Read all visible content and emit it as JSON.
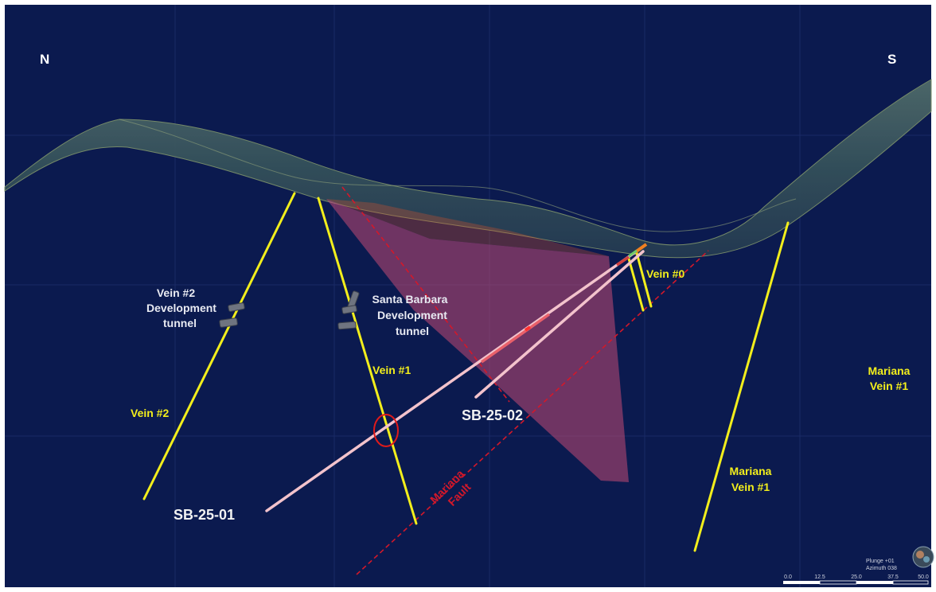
{
  "compass": {
    "north": "N",
    "south": "S"
  },
  "labels": {
    "vein2_tunnel": [
      "Vein #2",
      "Development",
      "tunnel"
    ],
    "santa_barbara_tunnel": [
      "Santa Barbara",
      "Development",
      "tunnel"
    ],
    "vein0": "Vein #0",
    "vein1": "Vein #1",
    "vein2": "Vein #2",
    "mariana_vein1_right": [
      "Mariana",
      "Vein #1"
    ],
    "mariana_vein1_lower": [
      "Mariana",
      "Vein #1"
    ],
    "fault": [
      "Mariana",
      "Fault"
    ]
  },
  "drillholes": {
    "sb01": "SB-25-01",
    "sb02": "SB-25-02"
  },
  "view": {
    "plunge": "Plunge +01",
    "azimuth": "Azimuth 038"
  },
  "scale_bar": {
    "ticks": [
      "0.0",
      "12.5",
      "25.0",
      "37.5",
      "50.0"
    ]
  },
  "colors": {
    "background": "#0b1a4f",
    "vein": "#f2ee1c",
    "drillhole": "#f3c3cc",
    "fault": "#d3182a",
    "fault_plane": "#c24a74",
    "vein_label": "#f2ee1c",
    "tunnel_label": "#e8eaf2",
    "drillhole_label": "#f2f2f2"
  }
}
